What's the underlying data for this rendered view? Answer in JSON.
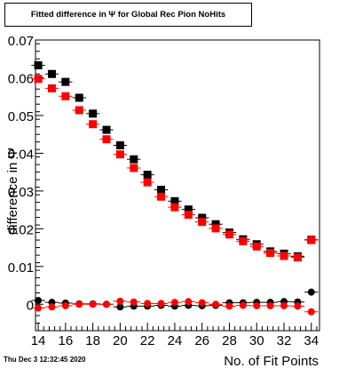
{
  "title": "Fitted difference in  Ψ  for Global Rec Pion NoHits",
  "timestamp": "Thu Dec  3 12:32:45 2020",
  "chart_data": {
    "type": "scatter",
    "title": "Fitted difference in  Ψ  for Global Rec Pion NoHits",
    "xlabel": "No. of Fit Points",
    "ylabel": "difference in  Ψ",
    "xlim": [
      13.8,
      34.6
    ],
    "ylim": [
      -0.007,
      0.07
    ],
    "xticks": [
      14,
      16,
      18,
      20,
      22,
      24,
      26,
      28,
      30,
      32,
      34
    ],
    "xtick_labels": [
      "14",
      "16",
      "18",
      "20",
      "22",
      "24",
      "26",
      "28",
      "30",
      "32",
      "34"
    ],
    "yticks": [
      0,
      0.01,
      0.02,
      0.03,
      0.04,
      0.05,
      0.06,
      0.07
    ],
    "ytick_labels": [
      "0",
      "0.01",
      "0.02",
      "0.03",
      "0.04",
      "0.05",
      "0.06",
      "0.07"
    ],
    "grid": false,
    "x": [
      14,
      15,
      16,
      17,
      18,
      19,
      20,
      21,
      22,
      23,
      24,
      25,
      26,
      27,
      28,
      29,
      30,
      31,
      32,
      33,
      34
    ],
    "series": [
      {
        "marker": "square",
        "color": "#000000",
        "values": [
          0.0633,
          0.061,
          0.0589,
          0.0547,
          0.0505,
          0.0462,
          0.0421,
          0.0384,
          0.0343,
          0.0303,
          0.0273,
          0.0251,
          0.0229,
          0.0212,
          0.019,
          0.0172,
          0.0159,
          0.014,
          0.0134,
          0.0127,
          0.0171
        ]
      },
      {
        "marker": "square",
        "color": "#ff0000",
        "values": [
          0.0597,
          0.0572,
          0.0551,
          0.0514,
          0.0477,
          0.0437,
          0.0397,
          0.0361,
          0.0323,
          0.0285,
          0.0257,
          0.0237,
          0.0218,
          0.0201,
          0.0185,
          0.0167,
          0.0153,
          0.0136,
          0.0128,
          0.0124,
          0.017
        ]
      },
      {
        "marker": "circle",
        "color": "#000000",
        "values": [
          0.001,
          0.0005,
          0.0003,
          0.0001,
          0.0001,
          0.0,
          -0.0007,
          -0.0005,
          -0.0005,
          -0.0003,
          -0.0005,
          -0.0003,
          -0.0004,
          -0.0003,
          0.0004,
          0.0004,
          0.0005,
          0.0005,
          0.0007,
          0.0006,
          0.0032
        ]
      },
      {
        "marker": "circle",
        "color": "#ff0000",
        "values": [
          -0.001,
          -0.0007,
          -0.0004,
          0.0,
          0.0,
          0.0,
          0.0008,
          0.0006,
          0.0002,
          0.0002,
          0.0005,
          0.0007,
          0.0004,
          0.0,
          -0.0005,
          -0.0003,
          -0.0004,
          -0.0004,
          -0.0004,
          -0.0005,
          -0.002
        ]
      }
    ]
  }
}
